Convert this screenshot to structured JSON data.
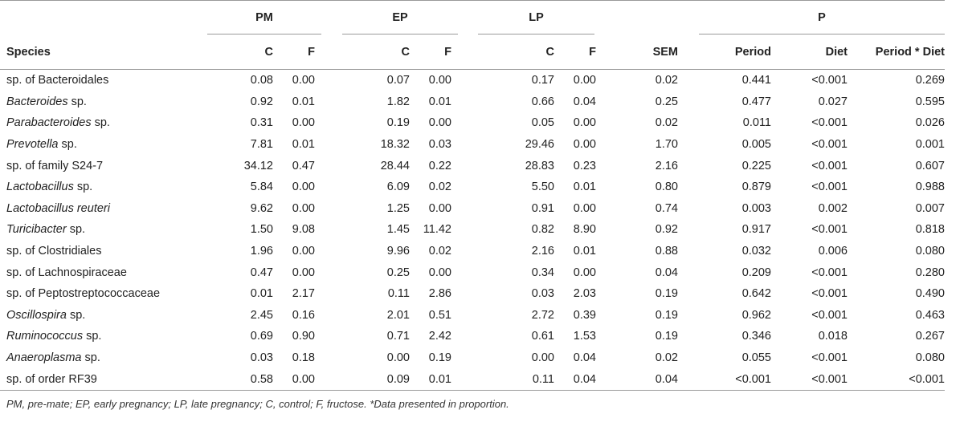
{
  "table": {
    "group_headers": {
      "pm": "PM",
      "ep": "EP",
      "lp": "LP",
      "p": "P"
    },
    "columns": {
      "species": "Species",
      "pm_c": "C",
      "pm_f": "F",
      "ep_c": "C",
      "ep_f": "F",
      "lp_c": "C",
      "lp_f": "F",
      "sem": "SEM",
      "period": "Period",
      "diet": "Diet",
      "interaction": "Period * Diet"
    },
    "rows": [
      {
        "italic": "",
        "name": "sp. of Bacteroidales",
        "pm_c": "0.08",
        "pm_f": "0.00",
        "ep_c": "0.07",
        "ep_f": "0.00",
        "lp_c": "0.17",
        "lp_f": "0.00",
        "sem": "0.02",
        "period": "0.441",
        "diet": "<0.001",
        "interaction": "0.269"
      },
      {
        "italic": "Bacteroides",
        "name": " sp.",
        "pm_c": "0.92",
        "pm_f": "0.01",
        "ep_c": "1.82",
        "ep_f": "0.01",
        "lp_c": "0.66",
        "lp_f": "0.04",
        "sem": "0.25",
        "period": "0.477",
        "diet": "0.027",
        "interaction": "0.595"
      },
      {
        "italic": "Parabacteroides",
        "name": " sp.",
        "pm_c": "0.31",
        "pm_f": "0.00",
        "ep_c": "0.19",
        "ep_f": "0.00",
        "lp_c": "0.05",
        "lp_f": "0.00",
        "sem": "0.02",
        "period": "0.011",
        "diet": "<0.001",
        "interaction": "0.026"
      },
      {
        "italic": "Prevotella",
        "name": " sp.",
        "pm_c": "7.81",
        "pm_f": "0.01",
        "ep_c": "18.32",
        "ep_f": "0.03",
        "lp_c": "29.46",
        "lp_f": "0.00",
        "sem": "1.70",
        "period": "0.005",
        "diet": "<0.001",
        "interaction": "0.001"
      },
      {
        "italic": "",
        "name": "sp. of family S24-7",
        "pm_c": "34.12",
        "pm_f": "0.47",
        "ep_c": "28.44",
        "ep_f": "0.22",
        "lp_c": "28.83",
        "lp_f": "0.23",
        "sem": "2.16",
        "period": "0.225",
        "diet": "<0.001",
        "interaction": "0.607"
      },
      {
        "italic": "Lactobacillus",
        "name": " sp.",
        "pm_c": "5.84",
        "pm_f": "0.00",
        "ep_c": "6.09",
        "ep_f": "0.02",
        "lp_c": "5.50",
        "lp_f": "0.01",
        "sem": "0.80",
        "period": "0.879",
        "diet": "<0.001",
        "interaction": "0.988"
      },
      {
        "italic": "Lactobacillus reuteri",
        "name": "",
        "pm_c": "9.62",
        "pm_f": "0.00",
        "ep_c": "1.25",
        "ep_f": "0.00",
        "lp_c": "0.91",
        "lp_f": "0.00",
        "sem": "0.74",
        "period": "0.003",
        "diet": "0.002",
        "interaction": "0.007"
      },
      {
        "italic": "Turicibacter",
        "name": " sp.",
        "pm_c": "1.50",
        "pm_f": "9.08",
        "ep_c": "1.45",
        "ep_f": "11.42",
        "lp_c": "0.82",
        "lp_f": "8.90",
        "sem": "0.92",
        "period": "0.917",
        "diet": "<0.001",
        "interaction": "0.818"
      },
      {
        "italic": "",
        "name": "sp. of Clostridiales",
        "pm_c": "1.96",
        "pm_f": "0.00",
        "ep_c": "9.96",
        "ep_f": "0.02",
        "lp_c": "2.16",
        "lp_f": "0.01",
        "sem": "0.88",
        "period": "0.032",
        "diet": "0.006",
        "interaction": "0.080"
      },
      {
        "italic": "",
        "name": "sp. of Lachnospiraceae",
        "pm_c": "0.47",
        "pm_f": "0.00",
        "ep_c": "0.25",
        "ep_f": "0.00",
        "lp_c": "0.34",
        "lp_f": "0.00",
        "sem": "0.04",
        "period": "0.209",
        "diet": "<0.001",
        "interaction": "0.280"
      },
      {
        "italic": "",
        "name": "sp. of Peptostreptococcaceae",
        "pm_c": "0.01",
        "pm_f": "2.17",
        "ep_c": "0.11",
        "ep_f": "2.86",
        "lp_c": "0.03",
        "lp_f": "2.03",
        "sem": "0.19",
        "period": "0.642",
        "diet": "<0.001",
        "interaction": "0.490"
      },
      {
        "italic": "Oscillospira",
        "name": " sp.",
        "pm_c": "2.45",
        "pm_f": "0.16",
        "ep_c": "2.01",
        "ep_f": "0.51",
        "lp_c": "2.72",
        "lp_f": "0.39",
        "sem": "0.19",
        "period": "0.962",
        "diet": "<0.001",
        "interaction": "0.463"
      },
      {
        "italic": "Ruminococcus",
        "name": " sp.",
        "pm_c": "0.69",
        "pm_f": "0.90",
        "ep_c": "0.71",
        "ep_f": "2.42",
        "lp_c": "0.61",
        "lp_f": "1.53",
        "sem": "0.19",
        "period": "0.346",
        "diet": "0.018",
        "interaction": "0.267"
      },
      {
        "italic": "Anaeroplasma",
        "name": " sp.",
        "pm_c": "0.03",
        "pm_f": "0.18",
        "ep_c": "0.00",
        "ep_f": "0.19",
        "lp_c": "0.00",
        "lp_f": "0.04",
        "sem": "0.02",
        "period": "0.055",
        "diet": "<0.001",
        "interaction": "0.080"
      },
      {
        "italic": "",
        "name": "sp. of order RF39",
        "pm_c": "0.58",
        "pm_f": "0.00",
        "ep_c": "0.09",
        "ep_f": "0.01",
        "lp_c": "0.11",
        "lp_f": "0.04",
        "sem": "0.04",
        "period": "<0.001",
        "diet": "<0.001",
        "interaction": "<0.001"
      }
    ]
  },
  "footnote": "PM, pre-mate; EP, early pregnancy; LP, late pregnancy; C, control; F, fructose. *Data presented in proportion."
}
